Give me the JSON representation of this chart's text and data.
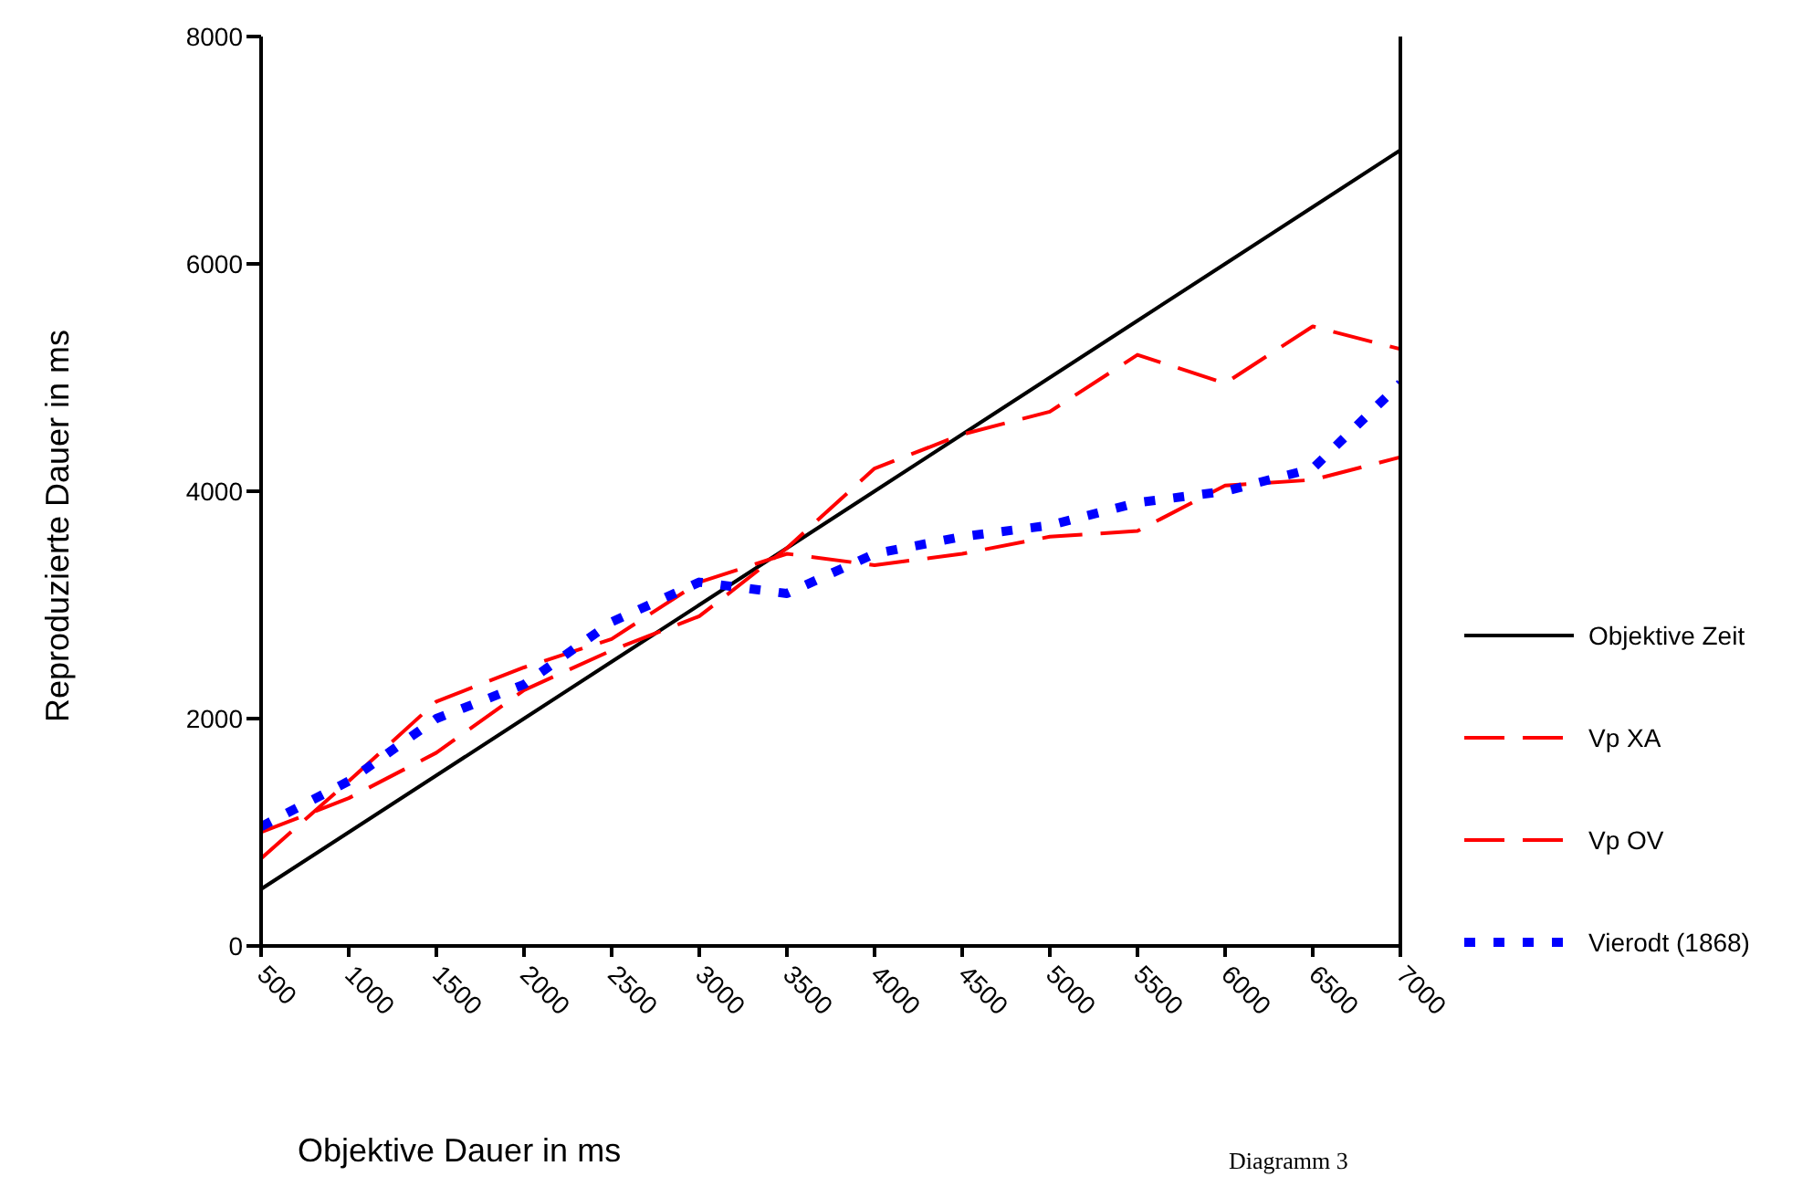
{
  "chart_data": {
    "type": "line",
    "xlabel": "Objektive Dauer in ms",
    "ylabel": "Reproduzierte Dauer in ms",
    "annotations": [
      "Diagramm 3"
    ],
    "x": [
      500,
      1000,
      1500,
      2000,
      2500,
      3000,
      3500,
      4000,
      4500,
      5000,
      5500,
      6000,
      6500,
      7000
    ],
    "xlim": [
      500,
      7000
    ],
    "xticks": [
      500,
      1000,
      1500,
      2000,
      2500,
      3000,
      3500,
      4000,
      4500,
      5000,
      5500,
      6000,
      6500,
      7000
    ],
    "ylim": [
      0,
      8000
    ],
    "yticks": [
      0,
      2000,
      4000,
      6000,
      8000
    ],
    "grid": false,
    "legend": "right",
    "marker": "none",
    "series": [
      {
        "name": "Objektive Zeit",
        "color": "#000000",
        "line_style": "solid",
        "values": [
          500,
          1000,
          1500,
          2000,
          2500,
          3000,
          3500,
          4000,
          4500,
          5000,
          5500,
          6000,
          6500,
          7000
        ]
      },
      {
        "name": "Vp XA",
        "color": "#ff0000",
        "line_style": "dashed",
        "values": [
          770,
          1450,
          2150,
          2450,
          2700,
          3200,
          3450,
          3350,
          3450,
          3600,
          3650,
          4050,
          4100,
          4300
        ]
      },
      {
        "name": "Vp OV",
        "color": "#ff0000",
        "line_style": "dashed",
        "values": [
          1000,
          1300,
          1700,
          2250,
          2600,
          2900,
          3500,
          4200,
          4500,
          4700,
          5200,
          4950,
          5450,
          5250
        ]
      },
      {
        "name": "Vierodt (1868)",
        "color": "#0000ff",
        "line_style": "dotted",
        "values": [
          1050,
          1450,
          2000,
          2300,
          2850,
          3200,
          3100,
          3450,
          3600,
          3700,
          3900,
          4000,
          4200,
          4950
        ]
      }
    ]
  }
}
